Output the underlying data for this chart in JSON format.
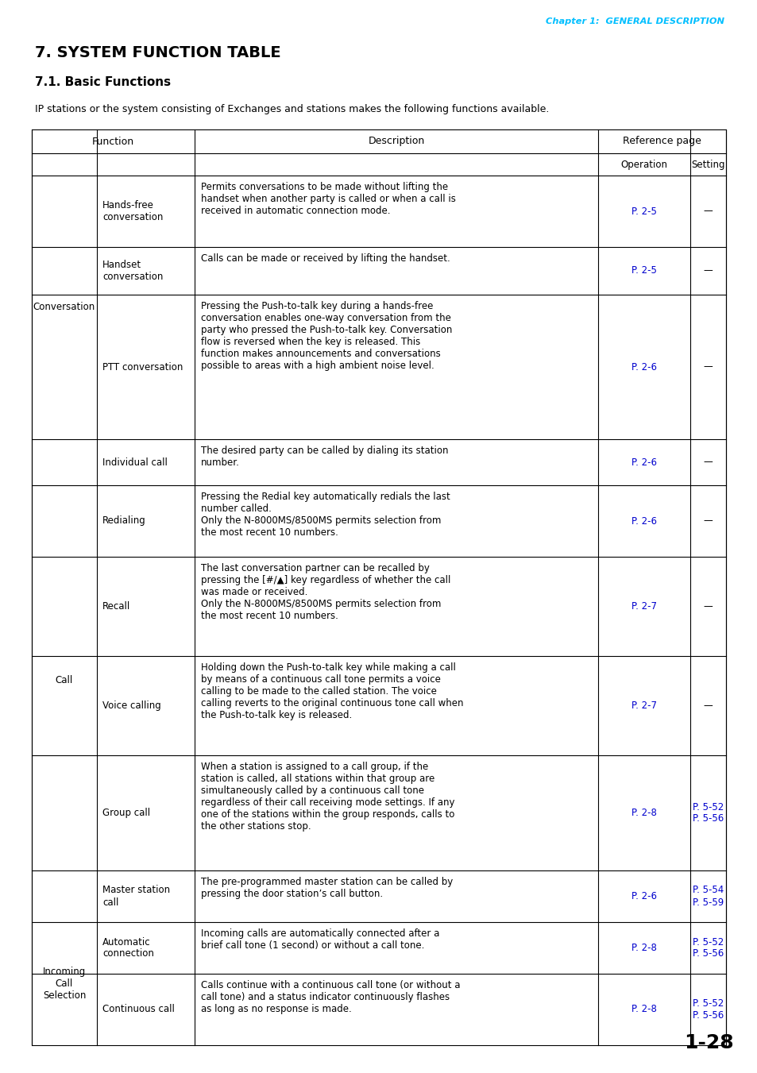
{
  "page_header": "Chapter 1:  GENERAL DESCRIPTION",
  "title": "7. SYSTEM FUNCTION TABLE",
  "subtitle": "7.1. Basic Functions",
  "intro": "IP stations or the system consisting of Exchanges and stations makes the following functions available.",
  "header_color": "#00BFFF",
  "link_color": "#0000CD",
  "text_color": "#000000",
  "page_number": "1-28",
  "rows": [
    {
      "group": "Conversation",
      "group_span": 3,
      "function": "Hands-free\nconversation",
      "description": "Permits conversations to be made without lifting the\nhandset when another party is called or when a call is\nreceived in automatic connection mode.",
      "operation": "P. 2-5",
      "setting": "—",
      "setting_is_link": false
    },
    {
      "group": "",
      "group_span": 0,
      "function": "Handset\nconversation",
      "description": "Calls can be made or received by lifting the handset.",
      "operation": "P. 2-5",
      "setting": "—",
      "setting_is_link": false
    },
    {
      "group": "",
      "group_span": 0,
      "function": "PTT conversation",
      "description": "Pressing the Push-to-talk key during a hands-free\nconversation enables one-way conversation from the\nparty who pressed the Push-to-talk key. Conversation\nflow is reversed when the key is released. This\nfunction makes announcements and conversations\npossible to areas with a high ambient noise level.",
      "operation": "P. 2-6",
      "setting": "—",
      "setting_is_link": false
    },
    {
      "group": "Call",
      "group_span": 6,
      "function": "Individual call",
      "description": "The desired party can be called by dialing its station\nnumber.",
      "operation": "P. 2-6",
      "setting": "—",
      "setting_is_link": false
    },
    {
      "group": "",
      "group_span": 0,
      "function": "Redialing",
      "description": "Pressing the Redial key automatically redials the last\nnumber called.\nOnly the N-8000MS/8500MS permits selection from\nthe most recent 10 numbers.",
      "operation": "P. 2-6",
      "setting": "—",
      "setting_is_link": false
    },
    {
      "group": "",
      "group_span": 0,
      "function": "Recall",
      "description": "The last conversation partner can be recalled by\npressing the [#/▲] key regardless of whether the call\nwas made or received.\nOnly the N-8000MS/8500MS permits selection from\nthe most recent 10 numbers.",
      "operation": "P. 2-7",
      "setting": "—",
      "setting_is_link": false
    },
    {
      "group": "",
      "group_span": 0,
      "function": "Voice calling",
      "description": "Holding down the Push-to-talk key while making a call\nby means of a continuous call tone permits a voice\ncalling to be made to the called station. The voice\ncalling reverts to the original continuous tone call when\nthe Push-to-talk key is released.",
      "operation": "P. 2-7",
      "setting": "—",
      "setting_is_link": false
    },
    {
      "group": "",
      "group_span": 0,
      "function": "Group call",
      "description": "When a station is assigned to a call group, if the\nstation is called, all stations within that group are\nsimultaneously called by a continuous call tone\nregardless of their call receiving mode settings. If any\none of the stations within the group responds, calls to\nthe other stations stop.",
      "operation": "P. 2-8",
      "setting": "P. 5-52\nP. 5-56",
      "setting_is_link": true
    },
    {
      "group": "",
      "group_span": 0,
      "function": "Master station\ncall",
      "description": "The pre-programmed master station can be called by\npressing the door station’s call button.",
      "operation": "P. 2-6",
      "setting": "P. 5-54\nP. 5-59",
      "setting_is_link": true
    },
    {
      "group": "Incoming\nCall\nSelection",
      "group_span": 2,
      "function": "Automatic\nconnection",
      "description": "Incoming calls are automatically connected after a\nbrief call tone (1 second) or without a call tone.",
      "operation": "P. 2-8",
      "setting": "P. 5-52\nP. 5-56",
      "setting_is_link": true
    },
    {
      "group": "",
      "group_span": 0,
      "function": "Continuous call",
      "description": "Calls continue with a continuous call tone (or without a\ncall tone) and a status indicator continuously flashes\nas long as no response is made.",
      "operation": "P. 2-8",
      "setting": "P. 5-52\nP. 5-56",
      "setting_is_link": true
    }
  ]
}
